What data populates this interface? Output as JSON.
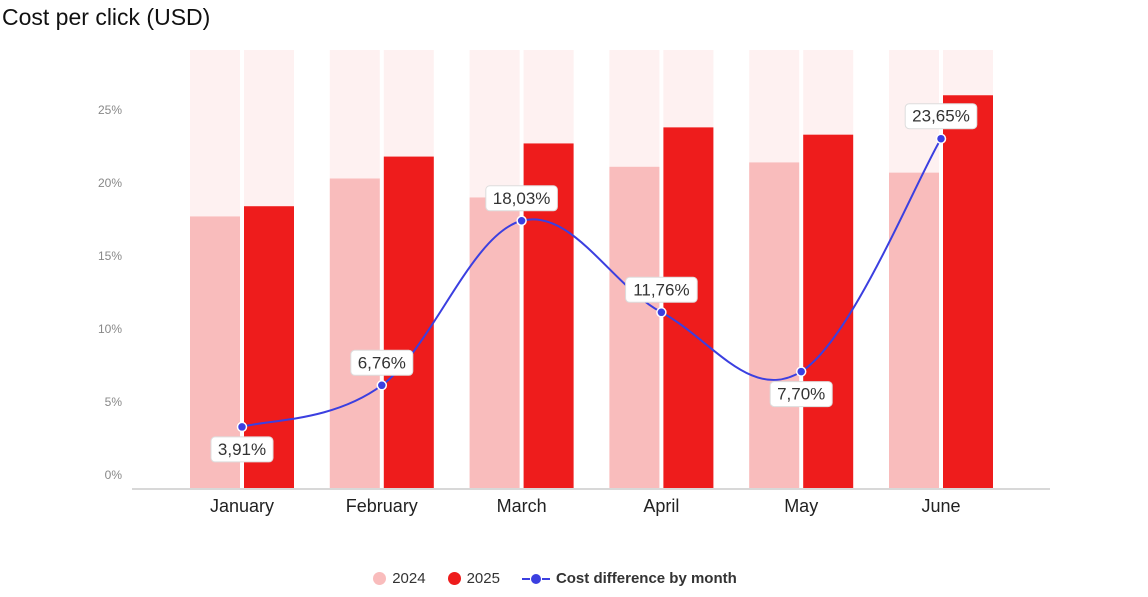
{
  "chart_data": {
    "type": "bar",
    "title": "Cost per click (USD)",
    "categories": [
      "January",
      "February",
      "March",
      "April",
      "May",
      "June"
    ],
    "y_ticks": [
      "0%",
      "5%",
      "10%",
      "15%",
      "20%",
      "25%"
    ],
    "ylim": [
      0,
      30
    ],
    "series": [
      {
        "name": "2024",
        "values": [
          18.6,
          21.2,
          19.9,
          22.0,
          22.3,
          21.6
        ],
        "color": "#f9bcbc"
      },
      {
        "name": "2025",
        "values": [
          19.3,
          22.7,
          23.6,
          24.7,
          24.2,
          26.9
        ],
        "color": "#ee1c1c"
      }
    ],
    "background_color": "#fef1f1",
    "line": {
      "name": "Cost difference by month",
      "values": [
        3.91,
        6.76,
        18.03,
        11.76,
        7.7,
        23.65
      ],
      "labels": [
        "3,91%",
        "6,76%",
        "18,03%",
        "11,76%",
        "7,70%",
        "23,65%"
      ],
      "label_below": [
        true,
        false,
        false,
        false,
        true,
        false
      ],
      "color": "#3b3fe0"
    },
    "legend_placement": "bottom"
  }
}
